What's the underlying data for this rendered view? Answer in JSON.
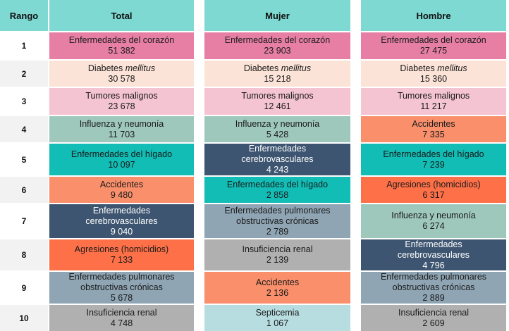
{
  "headers": {
    "rank": "Rango",
    "total": "Total",
    "mujer": "Mujer",
    "hombre": "Hombre"
  },
  "rows": [
    {
      "rank": "1",
      "total": {
        "name": "Enfermedades del corazón",
        "value": "51 382",
        "color": "#e77fa5"
      },
      "mujer": {
        "name": "Enfermedades del corazón",
        "value": "23 903",
        "color": "#e77fa5"
      },
      "hombre": {
        "name": "Enfermedades del corazón",
        "value": "27 475",
        "color": "#e77fa5"
      }
    },
    {
      "rank": "2",
      "total": {
        "name": "Diabetes",
        "name_italic": "mellitus",
        "value": "30 578",
        "color": "#fce3d8"
      },
      "mujer": {
        "name": "Diabetes",
        "name_italic": "mellitus",
        "value": "15 218",
        "color": "#fce3d8"
      },
      "hombre": {
        "name": "Diabetes",
        "name_italic": "mellitus",
        "value": "15 360",
        "color": "#fce3d8"
      }
    },
    {
      "rank": "3",
      "total": {
        "name": "Tumores malignos",
        "value": "23 678",
        "color": "#f4c4d3"
      },
      "mujer": {
        "name": "Tumores malignos",
        "value": "12 461",
        "color": "#f4c4d3"
      },
      "hombre": {
        "name": "Tumores malignos",
        "value": "11 217",
        "color": "#f4c4d3"
      }
    },
    {
      "rank": "4",
      "total": {
        "name": "Influenza y neumonía",
        "value": "11 703",
        "color": "#9fc8bd"
      },
      "mujer": {
        "name": "Influenza y neumonía",
        "value": "5 428",
        "color": "#9fc8bd"
      },
      "hombre": {
        "name": "Accidentes",
        "value": "7 335",
        "color": "#f98f6b"
      }
    },
    {
      "rank": "5",
      "total": {
        "name": "Enfermedades del hígado",
        "value": "10 097",
        "color": "#12bdb5"
      },
      "mujer": {
        "name": "Enfermedades\ncerebrovasculares",
        "value": "4 243",
        "color": "#3d5570",
        "dark": true
      },
      "hombre": {
        "name": "Enfermedades del hígado",
        "value": "7 239",
        "color": "#12bdb5"
      }
    },
    {
      "rank": "6",
      "total": {
        "name": "Accidentes",
        "value": "9 480",
        "color": "#f98f6b"
      },
      "mujer": {
        "name": "Enfermedades del hígado",
        "value": "2 858",
        "color": "#12bdb5"
      },
      "hombre": {
        "name": "Agresiones (homicidios)",
        "value": "6 317",
        "color": "#fd7048"
      }
    },
    {
      "rank": "7",
      "total": {
        "name": "Enfermedades\ncerebrovasculares",
        "value": "9 040",
        "color": "#3d5570",
        "dark": true
      },
      "mujer": {
        "name": "Enfermedades pulmonares\nobstructivas crónicas",
        "value": "2 789",
        "color": "#8fa5b4"
      },
      "hombre": {
        "name": "Influenza y neumonía",
        "value": "6 274",
        "color": "#9fc8bd"
      }
    },
    {
      "rank": "8",
      "total": {
        "name": "Agresiones (homicidios)",
        "value": "7 133",
        "color": "#fd7048"
      },
      "mujer": {
        "name": "Insuficiencia renal",
        "value": "2 139",
        "color": "#b0b0b0"
      },
      "hombre": {
        "name": "Enfermedades\ncerebrovasculares",
        "value": "4 796",
        "color": "#3d5570",
        "dark": true
      }
    },
    {
      "rank": "9",
      "total": {
        "name": "Enfermedades pulmonares\nobstructivas crónicas",
        "value": "5 678",
        "color": "#8fa5b4"
      },
      "mujer": {
        "name": "Accidentes",
        "value": "2 136",
        "color": "#f98f6b"
      },
      "hombre": {
        "name": "Enfermedades pulmonares\nobstructivas crónicas",
        "value": "2 889",
        "color": "#8fa5b4"
      }
    },
    {
      "rank": "10",
      "total": {
        "name": "Insuficiencia renal",
        "value": "4 748",
        "color": "#b0b0b0"
      },
      "mujer": {
        "name": "Septicemia",
        "value": "1 067",
        "color": "#b8dde1"
      },
      "hombre": {
        "name": "Insuficiencia renal",
        "value": "2 609",
        "color": "#b0b0b0"
      }
    }
  ]
}
